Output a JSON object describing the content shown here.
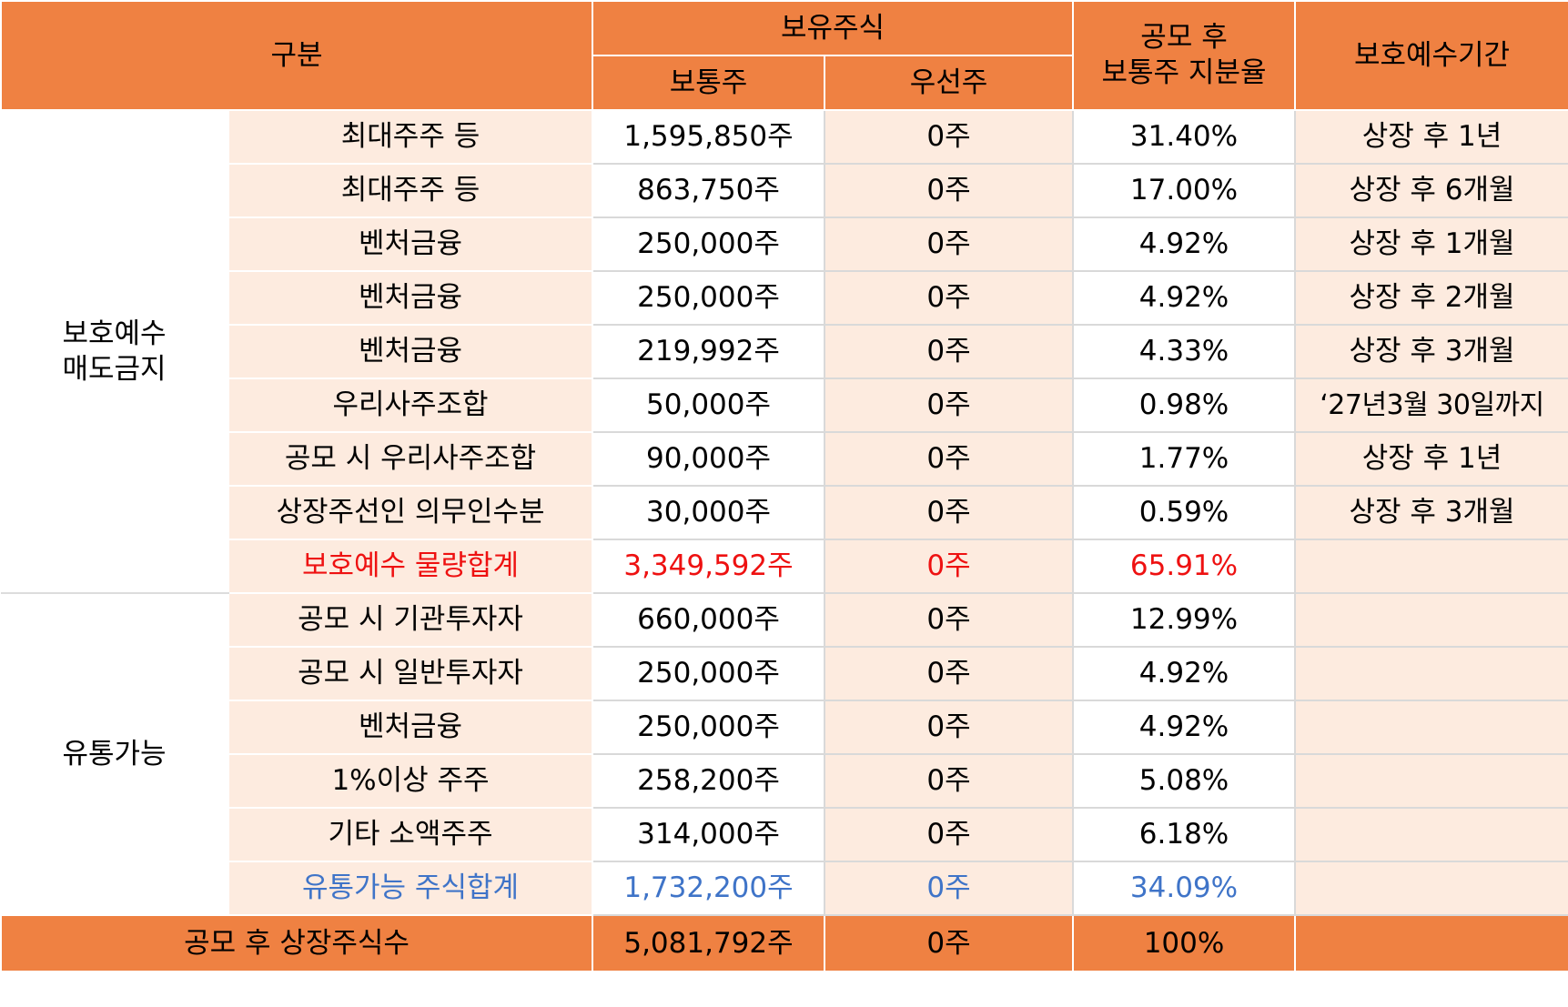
{
  "header": {
    "category": "구분",
    "holdings": "보유주식",
    "common": "보통주",
    "preferred": "우선주",
    "ratio_line1": "공모 후",
    "ratio_line2": "보통주 지분율",
    "lockup_period": "보호예수기간"
  },
  "groups": {
    "lockup_line1": "보호예수",
    "lockup_line2": "매도금지",
    "tradable": "유통가능"
  },
  "lockup_rows": [
    {
      "holder": "최대주주 등",
      "common": "1,595,850주",
      "preferred": "0주",
      "ratio": "31.40%",
      "period": "상장 후 1년"
    },
    {
      "holder": "최대주주 등",
      "common": "863,750주",
      "preferred": "0주",
      "ratio": "17.00%",
      "period": "상장 후 6개월"
    },
    {
      "holder": "벤처금융",
      "common": "250,000주",
      "preferred": "0주",
      "ratio": "4.92%",
      "period": "상장 후 1개월"
    },
    {
      "holder": "벤처금융",
      "common": "250,000주",
      "preferred": "0주",
      "ratio": "4.92%",
      "period": "상장 후 2개월"
    },
    {
      "holder": "벤처금융",
      "common": "219,992주",
      "preferred": "0주",
      "ratio": "4.33%",
      "period": "상장 후 3개월"
    },
    {
      "holder": "우리사주조합",
      "common": "50,000주",
      "preferred": "0주",
      "ratio": "0.98%",
      "period": "‘27년3월 30일까지"
    },
    {
      "holder": "공모 시 우리사주조합",
      "common": "90,000주",
      "preferred": "0주",
      "ratio": "1.77%",
      "period": "상장 후 1년"
    },
    {
      "holder": "상장주선인 의무인수분",
      "common": "30,000주",
      "preferred": "0주",
      "ratio": "0.59%",
      "period": "상장 후 3개월"
    }
  ],
  "lockup_total": {
    "label": "보호예수 물량합계",
    "common": "3,349,592주",
    "preferred": "0주",
    "ratio": "65.91%",
    "period": "",
    "color": "#ee1111"
  },
  "tradable_rows": [
    {
      "holder": "공모 시 기관투자자",
      "common": "660,000주",
      "preferred": "0주",
      "ratio": "12.99%",
      "period": ""
    },
    {
      "holder": "공모 시 일반투자자",
      "common": "250,000주",
      "preferred": "0주",
      "ratio": "4.92%",
      "period": ""
    },
    {
      "holder": "벤처금융",
      "common": "250,000주",
      "preferred": "0주",
      "ratio": "4.92%",
      "period": ""
    },
    {
      "holder": "1%이상 주주",
      "common": "258,200주",
      "preferred": "0주",
      "ratio": "5.08%",
      "period": ""
    },
    {
      "holder": "기타 소액주주",
      "common": "314,000주",
      "preferred": "0주",
      "ratio": "6.18%",
      "period": ""
    }
  ],
  "tradable_total": {
    "label": "유통가능 주식합계",
    "common": "1,732,200주",
    "preferred": "0주",
    "ratio": "34.09%",
    "period": "",
    "color": "#3f74c8"
  },
  "footer": {
    "label": "공모 후 상장주식수",
    "common": "5,081,792주",
    "preferred": "0주",
    "ratio": "100%",
    "period": ""
  },
  "colors": {
    "header_bg": "#ef8142",
    "row_tint": "#fdebdf"
  }
}
